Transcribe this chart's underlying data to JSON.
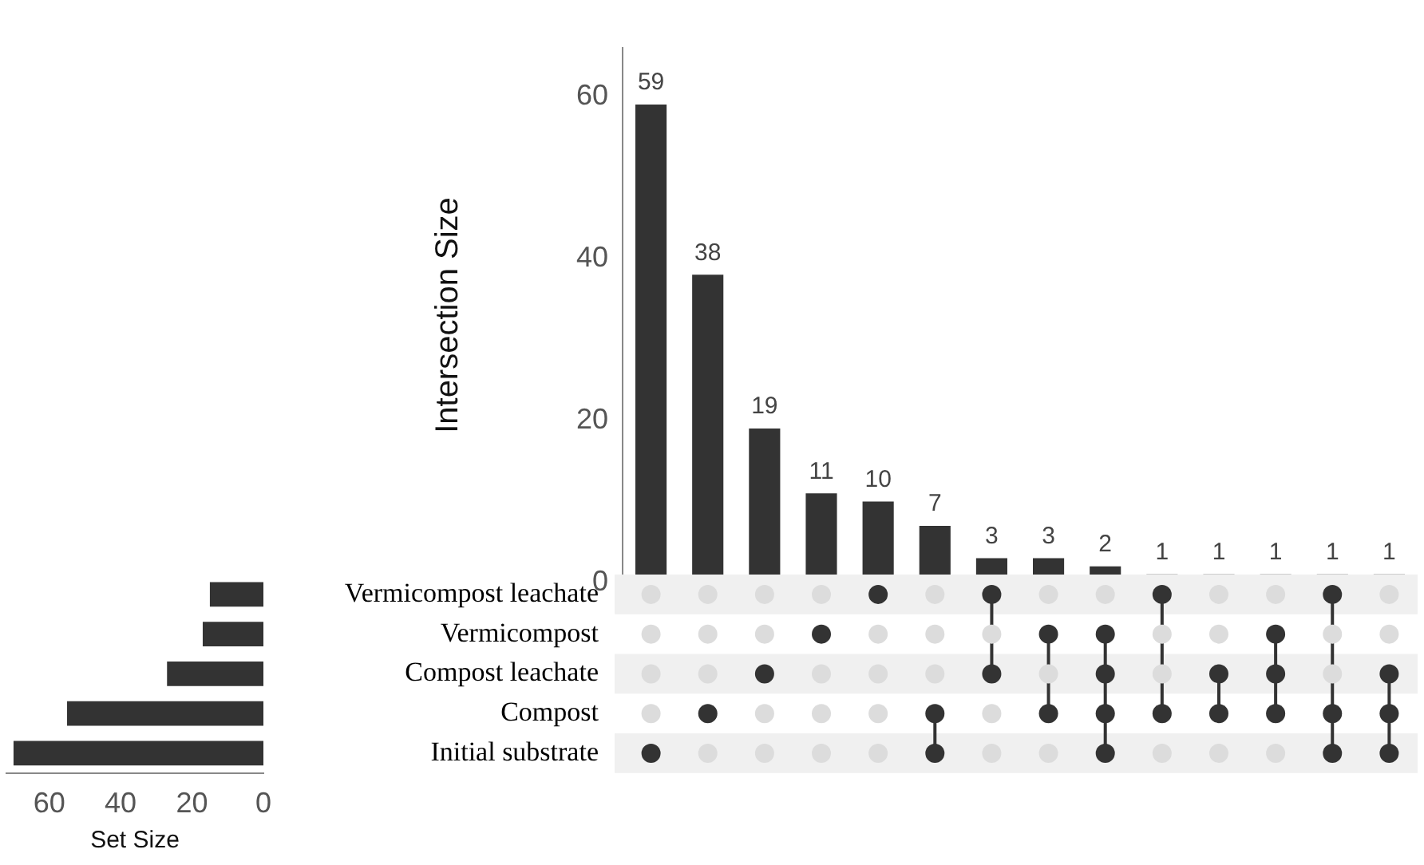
{
  "chart_data": [
    {
      "type": "bar",
      "ylabel": "Intersection Size",
      "categories": [
        null,
        null,
        null,
        null,
        null,
        null,
        null,
        null,
        null,
        null,
        null,
        null,
        null,
        null
      ],
      "series": [
        {
          "color": "#333333",
          "values": [
            59,
            38,
            19,
            11,
            10,
            7,
            3,
            3,
            2,
            1,
            1,
            1,
            1,
            1
          ]
        }
      ],
      "ylim": [
        0,
        66
      ],
      "yticks": [
        0,
        20,
        40,
        60
      ],
      "data_labels": true,
      "grid": false,
      "legend": false
    },
    {
      "type": "bar",
      "orientation": "horizontal",
      "xlabel": "Set Size",
      "categories": [
        "Vermicompost leachate",
        "Vermicompost",
        "Compost leachate",
        "Compost",
        "Initial substrate"
      ],
      "series": [
        {
          "color": "#333333",
          "values": [
            15,
            17,
            27,
            55,
            70
          ]
        }
      ],
      "xlim": [
        72,
        0
      ],
      "xticks": [
        60,
        40,
        20,
        0
      ],
      "grid": false,
      "legend": false
    }
  ]
}
